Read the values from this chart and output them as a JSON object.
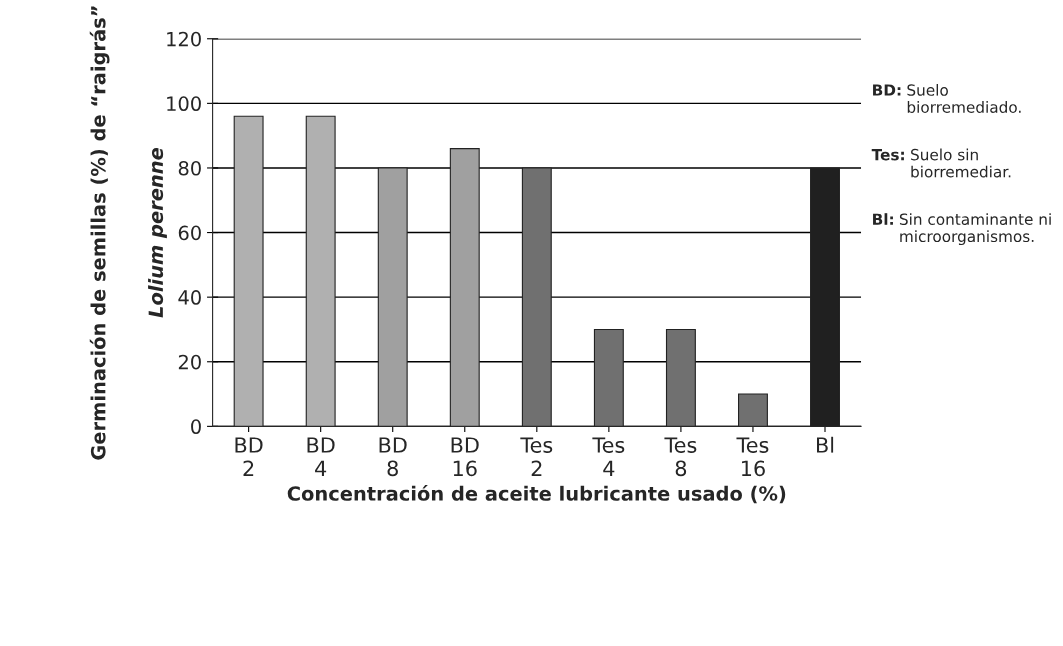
{
  "chart_data": {
    "type": "bar",
    "xlabel": "Concentración de aceite lubricante usado (%)",
    "ylabel": "Germinación de semillas (%) de “raigrás”\nLolium perenne",
    "categories": [
      "BD\n2",
      "BD\n4",
      "BD\n8",
      "BD\n16",
      "Tes\n2",
      "Tes\n4",
      "Tes\n8",
      "Tes\n16",
      "Bl"
    ],
    "values": [
      96,
      96,
      80,
      86,
      80,
      30,
      30,
      10,
      80
    ],
    "colors": [
      "#b0b0b0",
      "#b0b0b0",
      "#a0a0a0",
      "#a0a0a0",
      "#707070",
      "#707070",
      "#707070",
      "#707070",
      "#202020"
    ],
    "ylim": [
      0,
      120
    ],
    "yticks": [
      0,
      20,
      40,
      60,
      80,
      100,
      120
    ],
    "grid": "y",
    "annotations": [
      "BD: Suelo biorremediado.",
      "Tes: Suelo sin biorremediar.",
      "Bl: Sin contaminante ni microorganismos."
    ]
  }
}
